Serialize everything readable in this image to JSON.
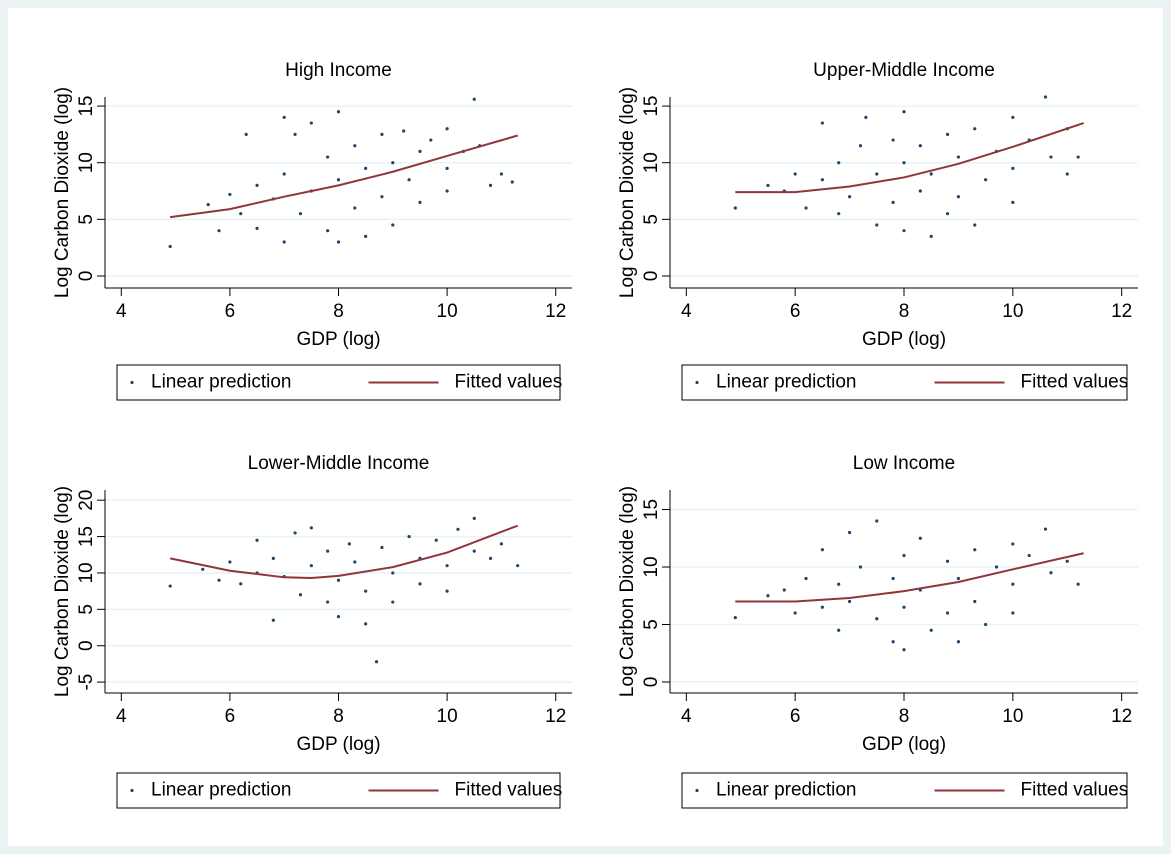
{
  "chart_data": [
    {
      "type": "scatter",
      "title": "High Income",
      "x_label": "GDP (log)",
      "y_label": "Log Carbon Dioxide (log)",
      "xlim": [
        3.7,
        12.3
      ],
      "ylim": [
        -1.06,
        15.8
      ],
      "xticks": [
        4,
        6,
        8,
        10,
        12
      ],
      "yticks": [
        0,
        5,
        10,
        15
      ],
      "grid": true,
      "series": [
        {
          "name": "Linear prediction",
          "type": "scatter",
          "color": "#1a476f",
          "x": [
            4.9,
            5.6,
            5.8,
            6.0,
            6.2,
            6.5,
            6.5,
            6.8,
            7.0,
            7.0,
            7.2,
            7.3,
            7.5,
            7.5,
            7.8,
            7.8,
            8.0,
            8.0,
            8.0,
            8.3,
            8.3,
            8.5,
            8.5,
            8.8,
            8.8,
            9.0,
            9.0,
            9.2,
            9.3,
            9.5,
            9.5,
            9.7,
            10.0,
            10.0,
            10.0,
            10.3,
            10.5,
            10.6,
            10.8,
            11.0,
            11.2,
            6.3,
            7.0
          ],
          "y": [
            2.6,
            6.3,
            4.0,
            7.2,
            5.5,
            8.0,
            4.2,
            6.8,
            3.0,
            9.0,
            12.5,
            5.5,
            13.5,
            7.5,
            10.5,
            4.0,
            14.5,
            8.5,
            3.0,
            11.5,
            6.0,
            9.5,
            3.5,
            12.5,
            7.0,
            10.0,
            4.5,
            12.8,
            8.5,
            6.5,
            11.0,
            12.0,
            13.0,
            9.5,
            7.5,
            11.0,
            15.6,
            11.5,
            8.0,
            9.0,
            8.3,
            12.5,
            14.0
          ]
        },
        {
          "name": "Fitted values",
          "type": "line",
          "color": "#90353b",
          "x": [
            4.9,
            6,
            7,
            8,
            9,
            10,
            11.3
          ],
          "y": [
            5.2,
            5.9,
            7.0,
            8.0,
            9.2,
            10.6,
            12.4
          ]
        }
      ]
    },
    {
      "type": "scatter",
      "title": "Upper-Middle Income",
      "x_label": "GDP (log)",
      "y_label": "Log Carbon Dioxide (log)",
      "xlim": [
        3.7,
        12.3
      ],
      "ylim": [
        -1.06,
        15.8
      ],
      "xticks": [
        4,
        6,
        8,
        10,
        12
      ],
      "yticks": [
        0,
        5,
        10,
        15
      ],
      "grid": true,
      "series": [
        {
          "name": "Linear prediction",
          "type": "scatter",
          "color": "#1a476f",
          "x": [
            4.9,
            5.5,
            5.8,
            6.0,
            6.2,
            6.5,
            6.5,
            6.8,
            6.8,
            7.0,
            7.2,
            7.3,
            7.5,
            7.5,
            7.8,
            7.8,
            8.0,
            8.0,
            8.0,
            8.3,
            8.3,
            8.5,
            8.5,
            8.8,
            8.8,
            9.0,
            9.0,
            9.3,
            9.3,
            9.5,
            9.7,
            10.0,
            10.0,
            10.0,
            10.3,
            10.6,
            10.7,
            11.0,
            11.2,
            11.0
          ],
          "y": [
            6.0,
            8.0,
            7.5,
            9.0,
            6.0,
            8.5,
            13.5,
            10.0,
            5.5,
            7.0,
            11.5,
            14.0,
            9.0,
            4.5,
            12.0,
            6.5,
            14.5,
            10.0,
            4.0,
            11.5,
            7.5,
            3.5,
            9.0,
            12.5,
            5.5,
            10.5,
            7.0,
            13.0,
            4.5,
            8.5,
            11.0,
            14.0,
            9.5,
            6.5,
            12.0,
            15.8,
            10.5,
            13.0,
            10.5,
            9.0
          ]
        },
        {
          "name": "Fitted values",
          "type": "line",
          "color": "#90353b",
          "x": [
            4.9,
            6,
            7,
            8,
            9,
            10,
            11.3
          ],
          "y": [
            7.4,
            7.4,
            7.9,
            8.7,
            9.9,
            11.4,
            13.5
          ]
        }
      ]
    },
    {
      "type": "scatter",
      "title": "Lower-Middle Income",
      "x_label": "GDP (log)",
      "y_label": "Log Carbon Dioxide (log)",
      "xlim": [
        3.7,
        12.3
      ],
      "ylim": [
        -6.5,
        21.4
      ],
      "xticks": [
        4,
        6,
        8,
        10,
        12
      ],
      "yticks": [
        -5,
        0,
        5,
        10,
        15,
        20
      ],
      "grid": true,
      "series": [
        {
          "name": "Linear prediction",
          "type": "scatter",
          "color": "#1a476f",
          "x": [
            4.9,
            5.5,
            5.8,
            6.0,
            6.2,
            6.5,
            6.5,
            6.8,
            6.8,
            7.0,
            7.2,
            7.3,
            7.5,
            7.5,
            7.8,
            7.8,
            8.0,
            8.0,
            8.2,
            8.3,
            8.5,
            8.5,
            8.7,
            8.8,
            9.0,
            9.0,
            9.3,
            9.5,
            9.5,
            9.8,
            10.0,
            10.2,
            10.5,
            10.5,
            10.8,
            11.0,
            11.3,
            10.0
          ],
          "y": [
            8.2,
            10.5,
            9.0,
            11.5,
            8.5,
            10.0,
            14.5,
            12.0,
            3.5,
            9.5,
            15.5,
            7.0,
            16.2,
            11.0,
            13.0,
            6.0,
            9.0,
            4.0,
            14.0,
            11.5,
            7.5,
            3.0,
            -2.2,
            13.5,
            10.0,
            6.0,
            15.0,
            12.0,
            8.5,
            14.5,
            11.0,
            16.0,
            17.5,
            13.0,
            12.0,
            14.0,
            11.0,
            7.5
          ]
        },
        {
          "name": "Fitted values",
          "type": "line",
          "color": "#90353b",
          "x": [
            4.9,
            6,
            7,
            7.5,
            8,
            9,
            10,
            11.3
          ],
          "y": [
            12.0,
            10.3,
            9.4,
            9.3,
            9.6,
            10.8,
            12.8,
            16.5
          ]
        }
      ]
    },
    {
      "type": "scatter",
      "title": "Low Income",
      "x_label": "GDP (log)",
      "y_label": "Log Carbon Dioxide (log)",
      "xlim": [
        3.7,
        12.3
      ],
      "ylim": [
        -0.96,
        16.7
      ],
      "xticks": [
        4,
        6,
        8,
        10,
        12
      ],
      "yticks": [
        0,
        5,
        10,
        15
      ],
      "grid": true,
      "series": [
        {
          "name": "Linear prediction",
          "type": "scatter",
          "color": "#1a476f",
          "x": [
            4.9,
            5.5,
            5.8,
            6.0,
            6.2,
            6.5,
            6.5,
            6.8,
            6.8,
            7.0,
            7.0,
            7.2,
            7.5,
            7.5,
            7.8,
            7.8,
            8.0,
            8.0,
            8.0,
            8.3,
            8.3,
            8.5,
            8.8,
            8.8,
            9.0,
            9.0,
            9.3,
            9.3,
            9.5,
            9.7,
            10.0,
            10.0,
            10.0,
            10.3,
            10.6,
            10.7,
            11.0,
            11.2
          ],
          "y": [
            5.6,
            7.5,
            8.0,
            6.0,
            9.0,
            11.5,
            6.5,
            8.5,
            4.5,
            13.0,
            7.0,
            10.0,
            14.0,
            5.5,
            9.0,
            3.5,
            11.0,
            6.5,
            2.8,
            12.5,
            8.0,
            4.5,
            10.5,
            6.0,
            9.0,
            3.5,
            11.5,
            7.0,
            5.0,
            10.0,
            12.0,
            8.5,
            6.0,
            11.0,
            13.3,
            9.5,
            10.5,
            8.5
          ]
        },
        {
          "name": "Fitted values",
          "type": "line",
          "color": "#90353b",
          "x": [
            4.9,
            6,
            7,
            8,
            9,
            10,
            11.3
          ],
          "y": [
            7.0,
            7.0,
            7.3,
            7.9,
            8.7,
            9.8,
            11.2
          ]
        }
      ]
    }
  ]
}
